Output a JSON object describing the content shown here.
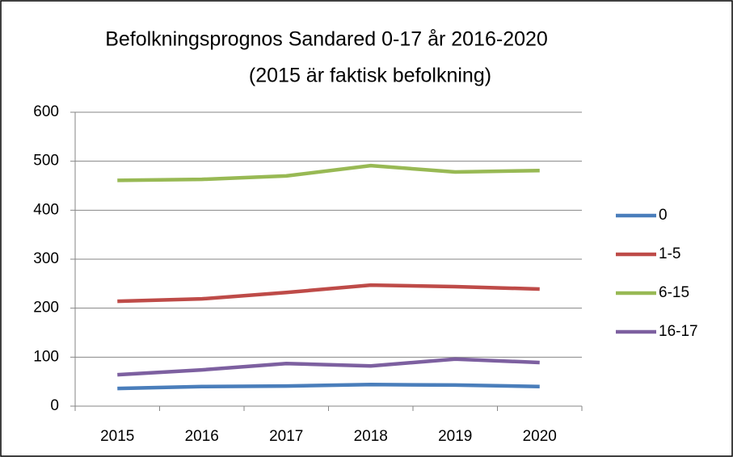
{
  "chart_data": {
    "type": "line",
    "title": "Befolkningsprognos Sandared 0-17 år 2016-2020",
    "subtitle": "(2015 är faktisk befolkning)",
    "categories": [
      "2015",
      "2016",
      "2017",
      "2018",
      "2019",
      "2020"
    ],
    "series": [
      {
        "name": "0",
        "color": "#4a7ebb",
        "values": [
          36,
          40,
          41,
          44,
          43,
          40
        ]
      },
      {
        "name": "1-5",
        "color": "#be4b48",
        "values": [
          214,
          219,
          232,
          247,
          244,
          239
        ]
      },
      {
        "name": "6-15",
        "color": "#98b954",
        "values": [
          461,
          463,
          470,
          491,
          478,
          481
        ]
      },
      {
        "name": "16-17",
        "color": "#7d60a0",
        "values": [
          64,
          74,
          87,
          82,
          96,
          89
        ]
      }
    ],
    "ylim": [
      0,
      600
    ],
    "yticks": [
      0,
      100,
      200,
      300,
      400,
      500,
      600
    ],
    "grid": true,
    "legend": "right"
  }
}
